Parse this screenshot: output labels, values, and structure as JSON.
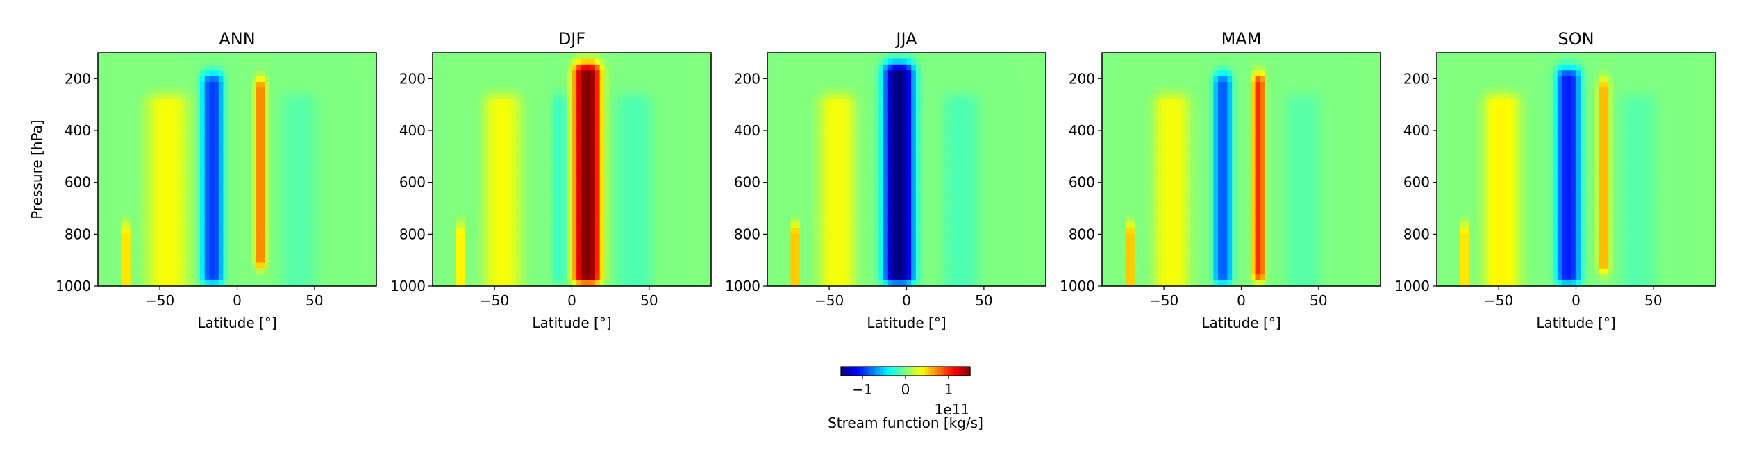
{
  "figure": {
    "ylabel": "Pressure [hPa]",
    "xlabel": "Latitude [°]",
    "x_ticks": [
      "−50",
      "0",
      "50"
    ],
    "y_ticks": [
      "200",
      "400",
      "600",
      "800",
      "1000"
    ],
    "colorbar": {
      "label": "Stream function [kg/s]",
      "ticks": [
        "−1",
        "0",
        "1"
      ],
      "offset_text": "1e11",
      "colormap": "jet",
      "range": [
        -1.5,
        1.5
      ]
    }
  },
  "chart_data": [
    {
      "type": "heatmap",
      "title": "ANN",
      "xlabel": "Latitude [°]",
      "ylabel": "Pressure [hPa]",
      "xlim": [
        -90,
        90
      ],
      "ylim": [
        1000,
        100
      ],
      "features": [
        {
          "lat": -45,
          "width": 14,
          "p_top": 300,
          "p_bot": 1000,
          "value": 0.35
        },
        {
          "lat": -16,
          "width": 7,
          "p_top": 220,
          "p_bot": 960,
          "value": -0.95
        },
        {
          "lat": 15,
          "width": 4,
          "p_top": 240,
          "p_bot": 900,
          "value": 0.75
        },
        {
          "lat": 40,
          "width": 12,
          "p_top": 300,
          "p_bot": 1000,
          "value": -0.12
        },
        {
          "lat": -72,
          "width": 3,
          "p_top": 800,
          "p_bot": 1000,
          "value": 0.5
        }
      ]
    },
    {
      "type": "heatmap",
      "title": "DJF",
      "xlabel": "Latitude [°]",
      "ylabel": "",
      "xlim": [
        -90,
        90
      ],
      "ylim": [
        1000,
        100
      ],
      "features": [
        {
          "lat": -45,
          "width": 12,
          "p_top": 300,
          "p_bot": 1000,
          "value": 0.35
        },
        {
          "lat": -8,
          "width": 5,
          "p_top": 300,
          "p_bot": 960,
          "value": -0.2
        },
        {
          "lat": 10,
          "width": 9,
          "p_top": 180,
          "p_bot": 960,
          "value": 1.5
        },
        {
          "lat": 40,
          "width": 12,
          "p_top": 300,
          "p_bot": 1000,
          "value": -0.15
        },
        {
          "lat": -72,
          "width": 3,
          "p_top": 800,
          "p_bot": 1000,
          "value": 0.45
        }
      ]
    },
    {
      "type": "heatmap",
      "title": "JJA",
      "xlabel": "Latitude [°]",
      "ylabel": "",
      "xlim": [
        -90,
        90
      ],
      "ylim": [
        1000,
        100
      ],
      "features": [
        {
          "lat": -45,
          "width": 12,
          "p_top": 300,
          "p_bot": 1000,
          "value": 0.35
        },
        {
          "lat": -5,
          "width": 10,
          "p_top": 180,
          "p_bot": 960,
          "value": -1.5
        },
        {
          "lat": 35,
          "width": 12,
          "p_top": 300,
          "p_bot": 1000,
          "value": -0.15
        },
        {
          "lat": -72,
          "width": 3,
          "p_top": 800,
          "p_bot": 1000,
          "value": 0.6
        }
      ]
    },
    {
      "type": "heatmap",
      "title": "MAM",
      "xlabel": "Latitude [°]",
      "ylabel": "",
      "xlim": [
        -90,
        90
      ],
      "ylim": [
        1000,
        100
      ],
      "features": [
        {
          "lat": -45,
          "width": 12,
          "p_top": 300,
          "p_bot": 1000,
          "value": 0.35
        },
        {
          "lat": -12,
          "width": 6,
          "p_top": 220,
          "p_bot": 960,
          "value": -0.85
        },
        {
          "lat": 11,
          "width": 4,
          "p_top": 220,
          "p_bot": 950,
          "value": 1.0
        },
        {
          "lat": 40,
          "width": 12,
          "p_top": 300,
          "p_bot": 1000,
          "value": -0.12
        },
        {
          "lat": -72,
          "width": 3,
          "p_top": 800,
          "p_bot": 1000,
          "value": 0.6
        }
      ]
    },
    {
      "type": "heatmap",
      "title": "SON",
      "xlabel": "Latitude [°]",
      "ylabel": "",
      "xlim": [
        -90,
        90
      ],
      "ylim": [
        1000,
        100
      ],
      "features": [
        {
          "lat": -48,
          "width": 12,
          "p_top": 300,
          "p_bot": 1000,
          "value": 0.4
        },
        {
          "lat": -5,
          "width": 8,
          "p_top": 200,
          "p_bot": 960,
          "value": -1.05
        },
        {
          "lat": 18,
          "width": 4,
          "p_top": 240,
          "p_bot": 920,
          "value": 0.6
        },
        {
          "lat": 40,
          "width": 12,
          "p_top": 300,
          "p_bot": 1000,
          "value": -0.12
        },
        {
          "lat": -72,
          "width": 3,
          "p_top": 800,
          "p_bot": 1000,
          "value": 0.5
        }
      ]
    }
  ]
}
